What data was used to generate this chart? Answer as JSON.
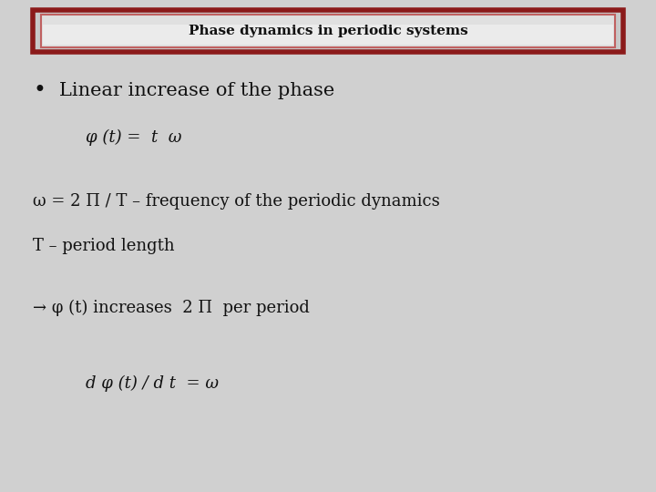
{
  "title": "Phase dynamics in periodic systems",
  "title_fontsize": 11,
  "title_bg_color": "#e8e8e8",
  "title_border_outer": "#8b1a1a",
  "title_border_inner": "#c06060",
  "background_color": "#d0d0d0",
  "bullet_char": "•",
  "bullet1": "Linear increase of the phase",
  "formula1": "φ (t) =  t  ω",
  "line2a": "ω = 2 Π / T – frequency of the periodic dynamics",
  "line2b": "T – period length",
  "arrow_line": "→ φ (t) increases  2 Π  per period",
  "formula2": "d φ (t) / d t  = ω",
  "body_fontsize": 15,
  "formula_fontsize": 13,
  "small_fontsize": 13,
  "text_color": "#111111"
}
